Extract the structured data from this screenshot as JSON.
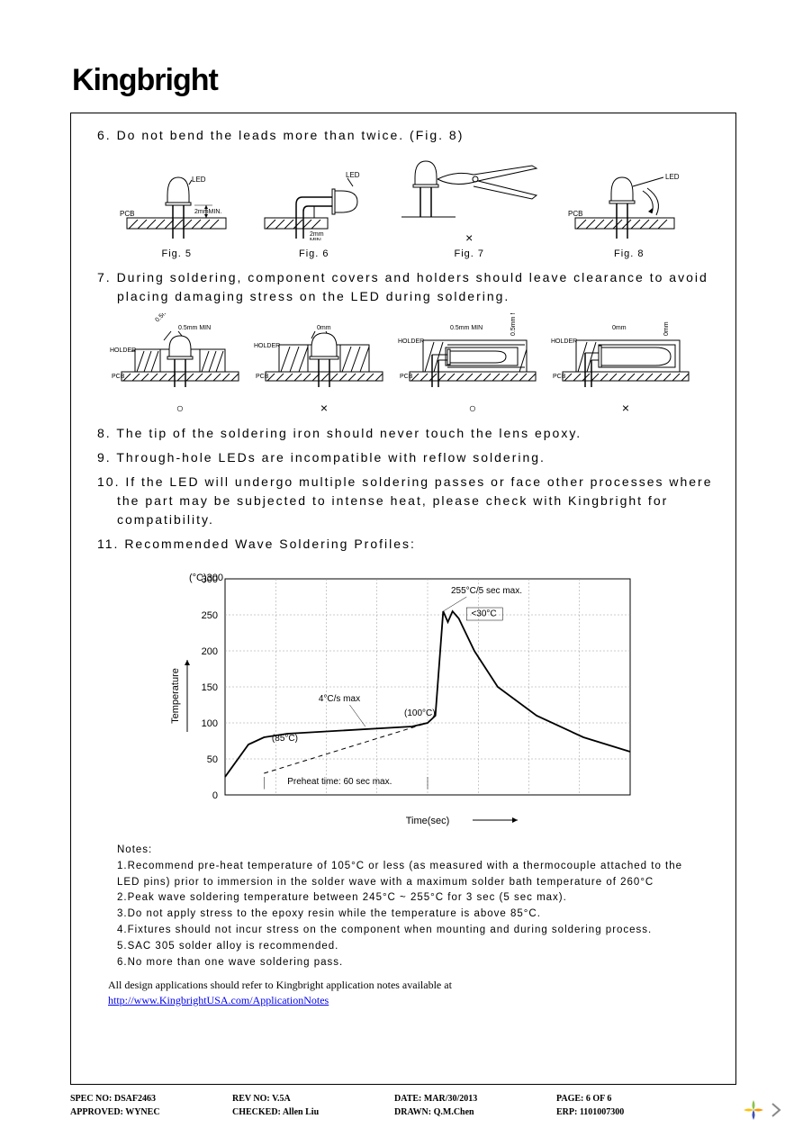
{
  "logo": "Kingbright",
  "items": {
    "i6": "6. Do not bend the leads more than twice. (Fig. 8)",
    "i7": "7. During soldering, component covers and holders should leave clearance to avoid placing damaging stress on the LED during soldering.",
    "i8": "8. The tip of the soldering iron should never touch the lens epoxy.",
    "i9": "9. Through-hole LEDs are incompatible with reflow soldering.",
    "i10": "10. If the LED will undergo multiple soldering passes or face other processes where the part may be subjected to intense heat, please check with Kingbright for compatibility.",
    "i11": "11. Recommended Wave Soldering Profiles:"
  },
  "figs": {
    "f5": "Fig. 5",
    "f6": "Fig. 6",
    "f7": "Fig. 7",
    "f8": "Fig. 8"
  },
  "diag_labels": {
    "led": "LED",
    "pcb": "PCB",
    "holder": "HOLDER",
    "mm2": "2mmMIN.",
    "mm2b": "2mm\nMIN.",
    "mm05": "0.5mm MIN",
    "mm0": "0mm"
  },
  "marks": {
    "ok": "○",
    "bad": "×"
  },
  "chart": {
    "ylabel": "Temperature",
    "xlabel": "Time(sec)",
    "yunit": "(°C)",
    "yticks": [
      0,
      50,
      100,
      150,
      200,
      250,
      300
    ],
    "ylim": [
      0,
      300
    ],
    "xlim": [
      0,
      260
    ],
    "grid_color": "#999999",
    "line_color": "#000000",
    "bg_color": "#ffffff",
    "font_size": 11,
    "annotations": {
      "peak": "255°C/5 sec max.",
      "dip": "<30°C",
      "preheat_start": "(85°C)",
      "preheat_end": "(100°C)",
      "rate": "4°C/s max",
      "preheat_time": "Preheat time: 60 sec max."
    },
    "profile": [
      [
        0,
        25
      ],
      [
        15,
        70
      ],
      [
        25,
        80
      ],
      [
        40,
        85
      ],
      [
        120,
        95
      ],
      [
        130,
        100
      ],
      [
        135,
        110
      ],
      [
        140,
        255
      ],
      [
        143,
        240
      ],
      [
        146,
        255
      ],
      [
        150,
        245
      ],
      [
        160,
        200
      ],
      [
        175,
        150
      ],
      [
        200,
        110
      ],
      [
        230,
        80
      ],
      [
        260,
        60
      ]
    ],
    "dashed": [
      [
        25,
        30
      ],
      [
        130,
        100
      ]
    ]
  },
  "notes": {
    "title": "Notes:",
    "n1": "1.Recommend pre-heat temperature of 105°C or less (as measured with a thermocouple attached to the LED pins) prior to immersion in the solder wave with a maximum solder bath temperature of 260°C",
    "n2": "2.Peak wave soldering temperature between 245°C ~ 255°C for 3 sec (5 sec max).",
    "n3": "3.Do not apply stress to the epoxy resin while the temperature is above 85°C.",
    "n4": "4.Fixtures should not incur stress on the component when mounting and during soldering process.",
    "n5": "5.SAC 305 solder alloy is recommended.",
    "n6": "6.No more than one wave soldering pass."
  },
  "link": {
    "text": "All design applications should refer to Kingbright application notes available at",
    "url": "http://www.KingbrightUSA.com/ApplicationNotes"
  },
  "footer": {
    "spec": "SPEC NO: DSAF2463",
    "rev": "REV NO: V.5A",
    "date": "DATE: MAR/30/2013",
    "page": "PAGE: 6 OF 6",
    "approved": "APPROVED: WYNEC",
    "checked": "CHECKED: Allen Liu",
    "drawn": "DRAWN: Q.M.Chen",
    "erp": "ERP: 1101007300"
  }
}
